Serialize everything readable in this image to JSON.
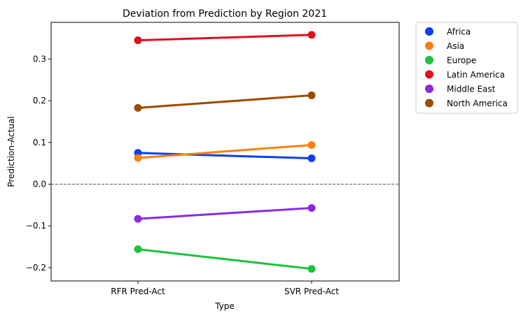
{
  "chart_data": {
    "type": "line",
    "title": "Deviation from Prediction by Region 2021",
    "xlabel": "Type",
    "ylabel": "Prediction-Actual",
    "categories": [
      "RFR Pred-Act",
      "SVR Pred-Act"
    ],
    "ylim": [
      -0.232,
      0.388
    ],
    "yticks": [
      -0.2,
      -0.1,
      0.0,
      0.1,
      0.2,
      0.3
    ],
    "ytick_labels": [
      "−0.2",
      "−0.1",
      "0.0",
      "0.1",
      "0.2",
      "0.3"
    ],
    "reference_line": 0.0,
    "legend_position": "outside right, top",
    "series": [
      {
        "name": "Africa",
        "color": "#0a3ff0",
        "values": [
          0.075,
          0.062
        ]
      },
      {
        "name": "Asia",
        "color": "#ff7f0e",
        "values": [
          0.063,
          0.094
        ]
      },
      {
        "name": "Europe",
        "color": "#1ec23a",
        "values": [
          -0.156,
          -0.203
        ]
      },
      {
        "name": "Latin America",
        "color": "#e0101a",
        "values": [
          0.345,
          0.358
        ]
      },
      {
        "name": "Middle East",
        "color": "#8a2be2",
        "values": [
          -0.083,
          -0.057
        ]
      },
      {
        "name": "North America",
        "color": "#9c4a00",
        "values": [
          0.183,
          0.213
        ]
      }
    ]
  }
}
